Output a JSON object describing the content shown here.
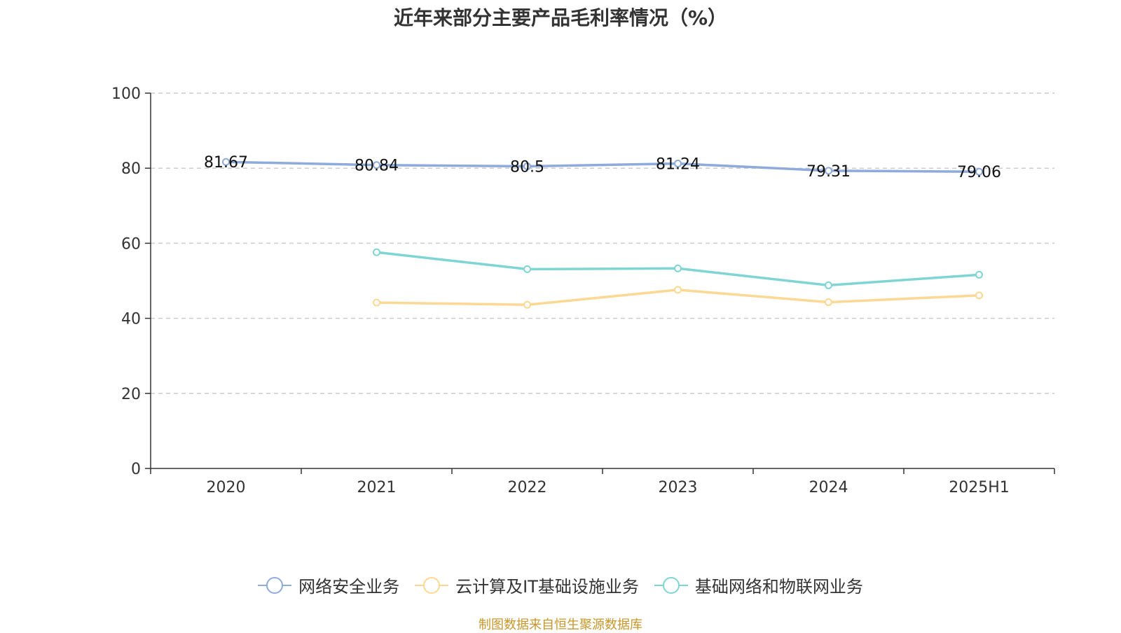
{
  "chart_data": {
    "type": "line",
    "title": "近年来部分主要产品毛利率情况（%）",
    "categories": [
      "2020",
      "2021",
      "2022",
      "2023",
      "2024",
      "2025H1"
    ],
    "ylim": [
      0,
      100
    ],
    "yticks": [
      0,
      20,
      40,
      60,
      80,
      100
    ],
    "grid": true,
    "legend_position": "bottom",
    "series": [
      {
        "name": "网络安全业务",
        "color": "#8eabdc",
        "values": [
          81.67,
          80.84,
          80.5,
          81.24,
          79.31,
          79.06
        ],
        "show_labels": true
      },
      {
        "name": "云计算及IT基础设施业务",
        "color": "#fcd894",
        "values": [
          null,
          44.2,
          43.6,
          47.6,
          44.3,
          46.1
        ],
        "show_labels": false
      },
      {
        "name": "基础网络和物联网业务",
        "color": "#7fd5d4",
        "values": [
          null,
          57.6,
          53.1,
          53.3,
          48.8,
          51.6
        ],
        "show_labels": false
      }
    ]
  },
  "source_note": "制图数据来自恒生聚源数据库"
}
